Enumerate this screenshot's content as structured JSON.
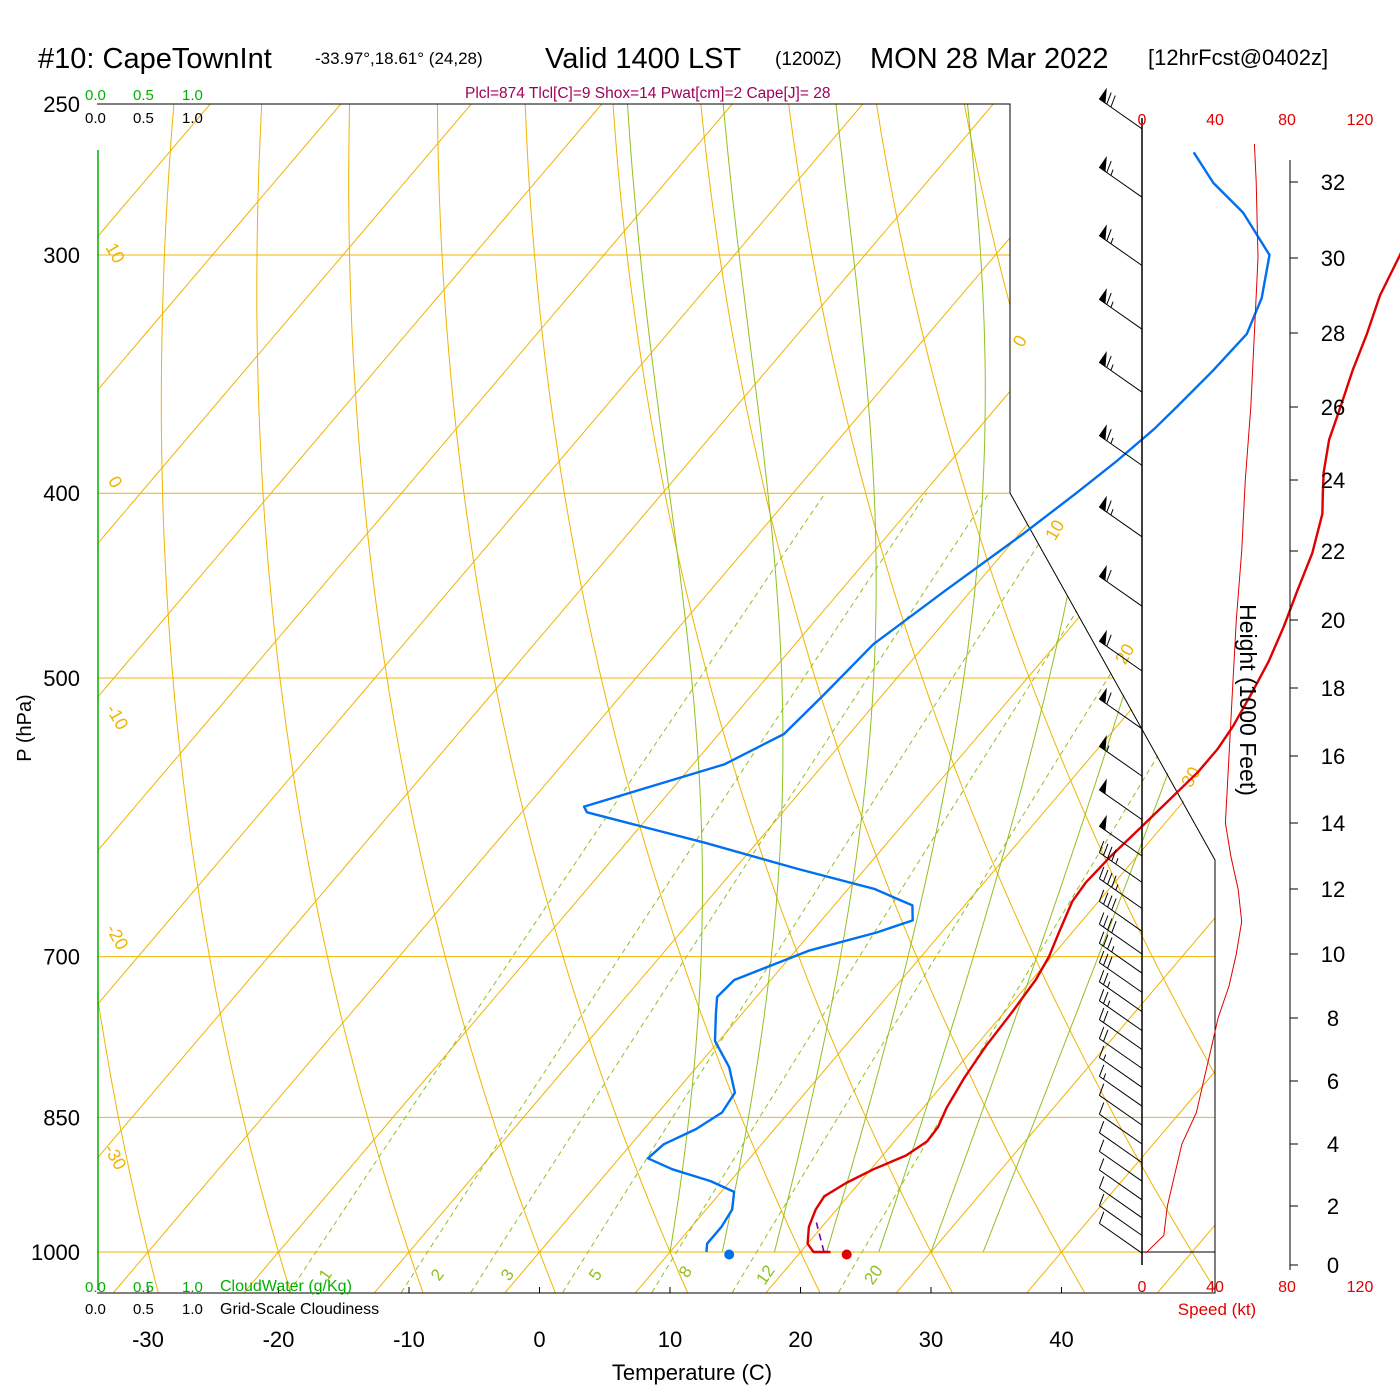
{
  "header": {
    "station": "#10: CapeTownInt",
    "coords": "-33.97°,18.61° (24,28)",
    "valid": "Valid 1400 LST",
    "zulu": "(1200Z)",
    "date": "MON 28 Mar 2022",
    "forecast": "[12hrFcst@0402z]",
    "indices": "Plcl=874 Tlcl[C]=9 Shox=14 Pwat[cm]=2 Cape[J]= 28"
  },
  "cloud_scale": {
    "green_ticks": [
      "0.0",
      "0.5",
      "1.0"
    ],
    "black_ticks": [
      "0.0",
      "0.5",
      "1.0"
    ],
    "green_label": "CloudWater (g/Kg)",
    "black_label": "Grid-Scale Cloudiness"
  },
  "speed_axis": {
    "ticks": [
      "0",
      "40",
      "80",
      "120"
    ],
    "label": "Speed (kt)"
  },
  "colors": {
    "isotherm": "#f0b400",
    "mixing_ratio": "#90c020",
    "temperature": "#e00000",
    "dewpoint": "#0070f0",
    "parcel": "#8000a0",
    "cloud_axis": "#00b000",
    "speed": "#e00000",
    "indices": "#a0005a"
  },
  "chart_data": {
    "type": "line",
    "title": "",
    "xlabel": "Temperature (C)",
    "ylabel": "P (hPa)",
    "y2label": "Height (1000 Feet)",
    "x_ticks": [
      -30,
      -20,
      -10,
      0,
      10,
      20,
      30,
      40
    ],
    "y_ticks": [
      250,
      300,
      400,
      500,
      700,
      850,
      1000
    ],
    "height_ticks": [
      0,
      2,
      4,
      6,
      8,
      10,
      12,
      14,
      16,
      18,
      20,
      22,
      24,
      26,
      28,
      30,
      32
    ],
    "isotherm_labels": [
      "10",
      "0",
      "-10",
      "-20",
      "-30",
      "0",
      "10",
      "20",
      "30"
    ],
    "mixing_ratio_labels": [
      "1",
      "2",
      "3",
      "5",
      "8",
      "12",
      "20"
    ],
    "series": [
      {
        "name": "",
        "color": "#e00000",
        "points": [
          [
            22.3,
            1000
          ],
          [
            21.0,
            1000
          ],
          [
            20.0,
            990
          ],
          [
            19.0,
            970
          ],
          [
            18.4,
            950
          ],
          [
            18.2,
            935
          ],
          [
            19.0,
            920
          ],
          [
            20.2,
            905
          ],
          [
            21.8,
            890
          ],
          [
            22.5,
            875
          ],
          [
            22.4,
            860
          ],
          [
            21.8,
            840
          ],
          [
            21.2,
            810
          ],
          [
            20.8,
            780
          ],
          [
            20.6,
            750
          ],
          [
            20.3,
            720
          ],
          [
            19.8,
            700
          ],
          [
            19.0,
            680
          ],
          [
            18.0,
            655
          ],
          [
            17.8,
            640
          ],
          [
            18.0,
            620
          ],
          [
            18.4,
            600
          ],
          [
            18.8,
            580
          ],
          [
            19.2,
            560
          ],
          [
            19.2,
            545
          ],
          [
            18.9,
            530
          ],
          [
            18.2,
            510
          ],
          [
            17.4,
            490
          ],
          [
            16.3,
            470
          ],
          [
            15.0,
            450
          ],
          [
            13.7,
            430
          ],
          [
            11.9,
            410
          ],
          [
            10.6,
            400
          ],
          [
            9.3,
            390
          ],
          [
            7.6,
            375
          ],
          [
            6.3,
            360
          ],
          [
            4.9,
            345
          ],
          [
            3.6,
            330
          ],
          [
            2.1,
            315
          ],
          [
            1.0,
            300
          ],
          [
            -0.4,
            285
          ],
          [
            -1.6,
            275
          ],
          [
            -2.7,
            266
          ]
        ]
      },
      {
        "name": "",
        "color": "#0070f0",
        "points": [
          [
            12.8,
            1000
          ],
          [
            12.3,
            990
          ],
          [
            12.3,
            970
          ],
          [
            12.0,
            950
          ],
          [
            11.0,
            930
          ],
          [
            8.5,
            918
          ],
          [
            4.8,
            905
          ],
          [
            2.2,
            893
          ],
          [
            2.5,
            878
          ],
          [
            4.0,
            862
          ],
          [
            4.9,
            845
          ],
          [
            4.6,
            825
          ],
          [
            2.5,
            800
          ],
          [
            -0.3,
            775
          ],
          [
            -2.0,
            750
          ],
          [
            -3.0,
            735
          ],
          [
            -2.8,
            720
          ],
          [
            1.0,
            695
          ],
          [
            5.0,
            680
          ],
          [
            7.0,
            670
          ],
          [
            6.0,
            658
          ],
          [
            2.0,
            645
          ],
          [
            -5.0,
            630
          ],
          [
            -14.0,
            610
          ],
          [
            -25.0,
            588
          ],
          [
            -25.6,
            584
          ],
          [
            -17.6,
            555
          ],
          [
            -15.0,
            535
          ],
          [
            -14.5,
            510
          ],
          [
            -14.0,
            480
          ],
          [
            -12.0,
            450
          ],
          [
            -9.7,
            420
          ],
          [
            -8.3,
            400
          ],
          [
            -7.3,
            385
          ],
          [
            -6.5,
            370
          ],
          [
            -6.2,
            360
          ],
          [
            -5.8,
            345
          ],
          [
            -5.6,
            330
          ],
          [
            -6.8,
            316
          ],
          [
            -9.0,
            300
          ],
          [
            -13.8,
            285
          ],
          [
            -18.0,
            275
          ],
          [
            -21.5,
            265
          ]
        ]
      },
      {
        "name": "",
        "color": "#8000a0",
        "dashed": true,
        "points": [
          [
            21.8,
            1000
          ],
          [
            19.3,
            965
          ]
        ]
      }
    ],
    "surface_points": [
      {
        "name": "",
        "color": "#e00000",
        "t": 23.7,
        "p": 1003
      },
      {
        "name": "",
        "color": "#0070f0",
        "t": 14.7,
        "p": 1003
      }
    ],
    "wind_speed_kt": {
      "heights_kft": [
        0.4,
        1.0,
        2.0,
        3.0,
        4.0,
        5.0,
        6.0,
        7.0,
        8.0,
        9.0,
        10.0,
        11.0,
        12.0,
        13.0,
        14.0,
        15.0,
        16.0,
        18.0,
        20.0,
        22.0,
        24.0,
        26.0,
        28.0,
        30.0,
        32.0,
        33.0
      ],
      "speed": [
        2,
        12,
        14,
        18,
        22,
        30,
        34,
        38,
        42,
        48,
        52,
        55,
        53,
        49,
        46,
        47,
        48,
        50,
        52,
        55,
        57,
        60,
        62,
        64,
        63,
        62
      ]
    },
    "wind_barbs": {
      "heights_kft": [
        0.4,
        1.0,
        1.6,
        2.2,
        2.8,
        3.4,
        4.0,
        4.6,
        5.2,
        5.8,
        6.4,
        7.0,
        7.6,
        8.2,
        8.8,
        9.4,
        10.0,
        10.7,
        11.4,
        12.2,
        13.0,
        14.1,
        15.4,
        16.8,
        18.5,
        20.4,
        22.4,
        24.4,
        26.4,
        28.1,
        29.8,
        31.6,
        33.4
      ],
      "speed_kt": [
        10,
        10,
        10,
        10,
        10,
        10,
        10,
        10,
        15,
        15,
        20,
        20,
        25,
        25,
        30,
        35,
        40,
        40,
        45,
        45,
        50,
        50,
        55,
        60,
        60,
        60,
        65,
        65,
        65,
        65,
        65,
        65,
        70
      ]
    }
  }
}
